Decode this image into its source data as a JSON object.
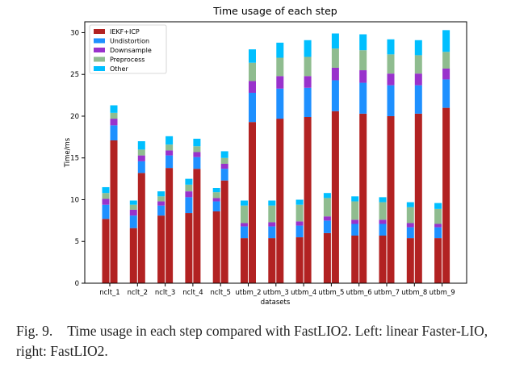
{
  "chart_data": {
    "type": "bar",
    "stacked": true,
    "grouped_pairs": true,
    "title": "Time usage of each step",
    "xlabel": "datasets",
    "ylabel": "Time/ms",
    "ylim": [
      0,
      31.3
    ],
    "yticks": [
      0,
      5,
      10,
      15,
      20,
      25,
      30
    ],
    "grid": false,
    "legend_placement": "top-left",
    "categories": [
      "nclt_1",
      "nclt_2",
      "nclt_3",
      "nclt_4",
      "nclt_5",
      "utbm_2",
      "utbm_3",
      "utbm_4",
      "utbm_5",
      "utbm_6",
      "utbm_7",
      "utbm_8",
      "utbm_9"
    ],
    "components": [
      {
        "name": "IEKF+ICP",
        "color": "#b22222"
      },
      {
        "name": "Undistortion",
        "color": "#1e90ff"
      },
      {
        "name": "Downsample",
        "color": "#9932cc"
      },
      {
        "name": "Preprocess",
        "color": "#8fbc8f"
      },
      {
        "name": "Other",
        "color": "#00bfff"
      }
    ],
    "bars_left": [
      [
        7.7,
        1.7,
        0.7,
        0.7,
        0.7
      ],
      [
        6.6,
        1.5,
        0.7,
        0.6,
        0.5
      ],
      [
        8.1,
        1.2,
        0.5,
        0.6,
        0.6
      ],
      [
        8.4,
        1.9,
        0.7,
        0.8,
        0.7
      ],
      [
        8.6,
        1.2,
        0.4,
        0.7,
        0.5
      ],
      [
        5.4,
        1.4,
        0.4,
        2.1,
        0.6
      ],
      [
        5.4,
        1.4,
        0.5,
        2.0,
        0.6
      ],
      [
        5.5,
        1.4,
        0.5,
        2.0,
        0.6
      ],
      [
        6.0,
        1.5,
        0.5,
        2.2,
        0.6
      ],
      [
        5.7,
        1.4,
        0.5,
        2.2,
        0.6
      ],
      [
        5.7,
        1.4,
        0.5,
        2.1,
        0.6
      ],
      [
        5.4,
        1.3,
        0.5,
        1.9,
        0.6
      ],
      [
        5.4,
        1.3,
        0.4,
        1.8,
        0.7
      ]
    ],
    "bars_right": [
      [
        17.1,
        1.8,
        0.8,
        0.7,
        0.9
      ],
      [
        13.2,
        1.4,
        0.7,
        0.7,
        1.0
      ],
      [
        13.8,
        1.5,
        0.6,
        0.7,
        1.0
      ],
      [
        13.7,
        1.4,
        0.6,
        0.7,
        0.9
      ],
      [
        12.3,
        1.4,
        0.6,
        0.7,
        0.8
      ],
      [
        19.3,
        3.5,
        1.4,
        2.2,
        1.6
      ],
      [
        19.7,
        3.6,
        1.5,
        2.2,
        1.8
      ],
      [
        19.9,
        3.5,
        1.4,
        2.3,
        2.0
      ],
      [
        20.6,
        3.7,
        1.5,
        2.3,
        1.8
      ],
      [
        20.3,
        3.7,
        1.5,
        2.4,
        1.9
      ],
      [
        20.0,
        3.7,
        1.4,
        2.3,
        1.8
      ],
      [
        20.3,
        3.4,
        1.4,
        2.2,
        1.8
      ],
      [
        21.0,
        3.4,
        1.3,
        2.0,
        2.6
      ]
    ]
  },
  "caption": {
    "label": "Fig. 9.",
    "text": "Time usage in each step compared with FastLIO2. Left: linear Faster-LIO, right: FastLIO2."
  }
}
